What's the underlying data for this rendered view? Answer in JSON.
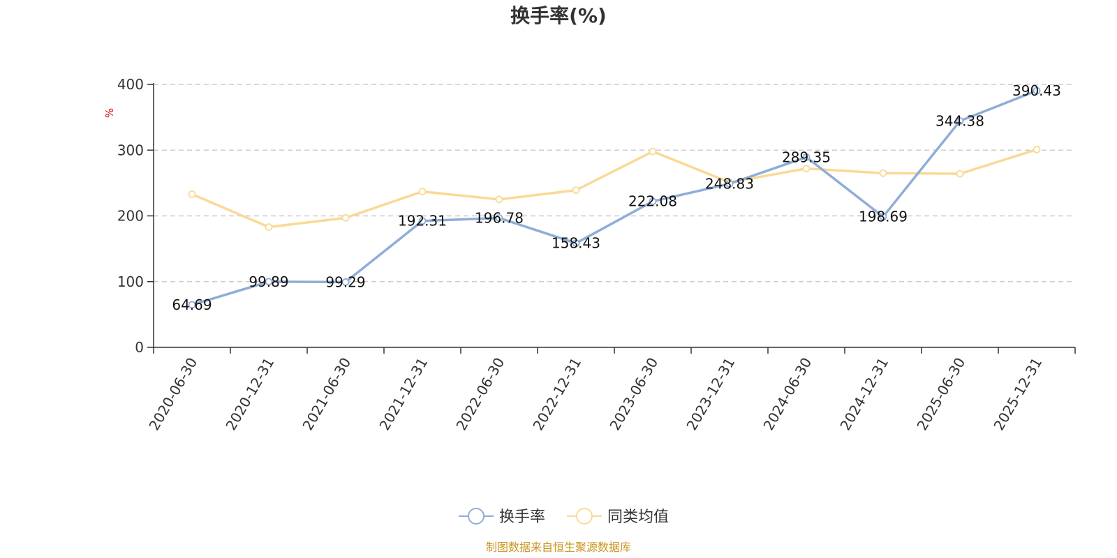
{
  "chart_data": {
    "type": "line",
    "title": "换手率(%)",
    "ylabel": "%",
    "xlabel": "",
    "ylim": [
      0,
      400
    ],
    "yticks": [
      0,
      100,
      200,
      300,
      400
    ],
    "grid": true,
    "legend_position": "bottom-center",
    "categories": [
      "2020-06-30",
      "2020-12-31",
      "2021-06-30",
      "2021-12-31",
      "2022-06-30",
      "2022-12-31",
      "2023-06-30",
      "2023-12-31",
      "2024-06-30",
      "2024-12-31",
      "2025-06-30",
      "2025-12-31"
    ],
    "series": [
      {
        "name": "换手率",
        "color": "#8fadd8",
        "values": [
          64.69,
          99.89,
          99.29,
          192.31,
          196.78,
          158.43,
          222.08,
          248.83,
          289.35,
          198.69,
          344.38,
          390.43
        ],
        "labels": [
          "64.69",
          "99.89",
          "99.29",
          "192.31",
          "196.78",
          "158.43",
          "222.08",
          "248.83",
          "289.35",
          "198.69",
          "344.38",
          "390.43"
        ],
        "show_labels": true
      },
      {
        "name": "同类均值",
        "color": "#fad996",
        "values": [
          233,
          183,
          197,
          237,
          225,
          239,
          298,
          251,
          272,
          265,
          264,
          301
        ],
        "show_labels": false
      }
    ],
    "source": "制图数据来自恒生聚源数据库",
    "source_color": "#c8961e"
  }
}
